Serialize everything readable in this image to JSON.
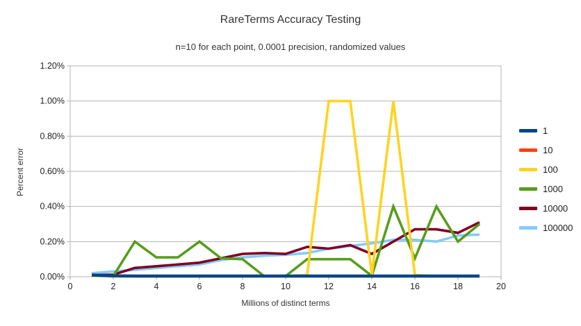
{
  "title": "RareTerms Accuracy Testing",
  "subtitle": "n=10 for each point, 0.0001 precision, randomized values",
  "chart_data": {
    "type": "line",
    "title": "RareTerms Accuracy Testing",
    "subtitle": "n=10 for each point, 0.0001 precision, randomized values",
    "xlabel": "Millions of distinct terms",
    "ylabel": "Percent error",
    "units": "percent",
    "grid": "horizontal",
    "legend_position": "right",
    "xlim": [
      0,
      20
    ],
    "ylim": [
      0,
      1.2
    ],
    "x_ticks": [
      {
        "v": 0,
        "label": "0"
      },
      {
        "v": 2,
        "label": "2"
      },
      {
        "v": 4,
        "label": "4"
      },
      {
        "v": 6,
        "label": "6"
      },
      {
        "v": 8,
        "label": "8"
      },
      {
        "v": 10,
        "label": "10"
      },
      {
        "v": 12,
        "label": "12"
      },
      {
        "v": 14,
        "label": "14"
      },
      {
        "v": 16,
        "label": "16"
      },
      {
        "v": 18,
        "label": "18"
      },
      {
        "v": 20,
        "label": "20"
      }
    ],
    "y_ticks": [
      {
        "v": 0.0,
        "label": "0.00%"
      },
      {
        "v": 0.2,
        "label": "0.20%"
      },
      {
        "v": 0.4,
        "label": "0.40%"
      },
      {
        "v": 0.6,
        "label": "0.60%"
      },
      {
        "v": 0.8,
        "label": "0.80%"
      },
      {
        "v": 1.0,
        "label": "1.00%"
      },
      {
        "v": 1.2,
        "label": "1.20%"
      }
    ],
    "x": [
      1,
      2,
      3,
      4,
      5,
      6,
      7,
      8,
      9,
      10,
      11,
      12,
      13,
      14,
      15,
      16,
      17,
      18,
      19
    ],
    "series": [
      {
        "name": "1",
        "color": "#004586",
        "width": 4.5,
        "values": [
          0.01,
          0.005,
          0.004,
          0.004,
          0.004,
          0.004,
          0.004,
          0.004,
          0.004,
          0.004,
          0.004,
          0.004,
          0.004,
          0.004,
          0.004,
          0.004,
          0.004,
          0.004,
          0.004
        ]
      },
      {
        "name": "10",
        "color": "#FF420E",
        "width": 4.0,
        "values": [
          0.01,
          0.005,
          0.004,
          0.004,
          0.004,
          0.004,
          0.004,
          0.004,
          0.004,
          0.004,
          0.004,
          0.004,
          0.004,
          0.004,
          0.004,
          0.004,
          0.004,
          0.004,
          0.004
        ]
      },
      {
        "name": "100",
        "color": "#FFD320",
        "width": 3.6,
        "values": [
          0.004,
          0.004,
          0.004,
          0.004,
          0.004,
          0.004,
          0.004,
          0.004,
          0.004,
          0.004,
          0.01,
          1.0,
          1.0,
          0.01,
          1.0,
          0.01,
          0.004,
          0.004,
          0.004
        ]
      },
      {
        "name": "1000",
        "color": "#579D1C",
        "width": 3.6,
        "values": [
          0.01,
          0.004,
          0.2,
          0.11,
          0.11,
          0.2,
          0.105,
          0.1,
          0.004,
          0.004,
          0.1,
          0.1,
          0.1,
          0.005,
          0.4,
          0.105,
          0.4,
          0.2,
          0.3
        ]
      },
      {
        "name": "10000",
        "color": "#7E0021",
        "width": 3.6,
        "values": [
          0.01,
          0.012,
          0.05,
          0.06,
          0.07,
          0.08,
          0.105,
          0.13,
          0.135,
          0.13,
          0.17,
          0.16,
          0.18,
          0.13,
          0.2,
          0.27,
          0.27,
          0.25,
          0.31
        ]
      },
      {
        "name": "100000",
        "color": "#83CAFF",
        "width": 3.6,
        "values": [
          0.02,
          0.03,
          0.04,
          0.05,
          0.06,
          0.07,
          0.095,
          0.11,
          0.12,
          0.125,
          0.135,
          0.16,
          0.175,
          0.19,
          0.21,
          0.21,
          0.2,
          0.235,
          0.24
        ]
      }
    ],
    "draw_order": [
      "100000",
      "10000",
      "1000",
      "100",
      "10",
      "1"
    ]
  }
}
